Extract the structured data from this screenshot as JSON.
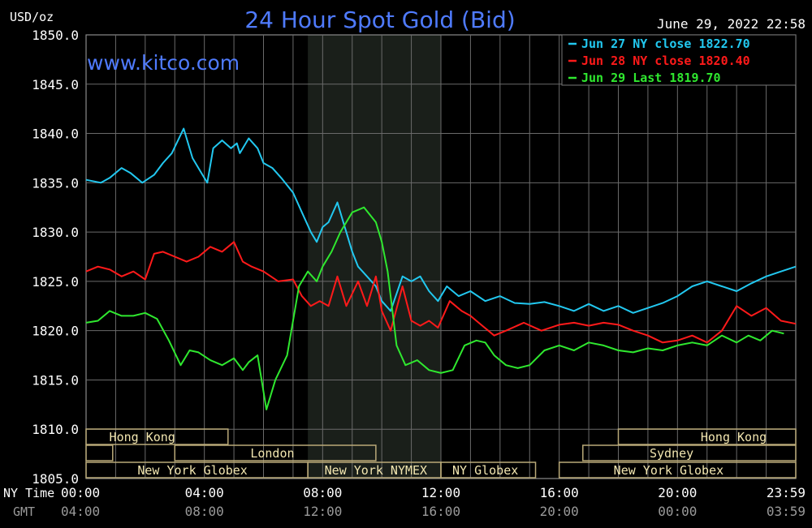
{
  "chart_data": {
    "type": "line",
    "title": "24 Hour Spot Gold (Bid)",
    "ylabel": "USD/oz",
    "watermark": "www.kitco.com",
    "timestamp": "June 29, 2022 22:58",
    "ylim": [
      1805,
      1850
    ],
    "y_ticks": [
      "1850.0",
      "1845.0",
      "1840.0",
      "1835.0",
      "1830.0",
      "1825.0",
      "1820.0",
      "1815.0",
      "1810.0",
      "1805.0"
    ],
    "xlim": [
      0,
      24
    ],
    "x_axis_label": "NY Time",
    "x_axis_label2": "GMT",
    "x_ticks": [
      {
        "x": 0,
        "ny": "00:00",
        "gmt": "04:00"
      },
      {
        "x": 4,
        "ny": "04:00",
        "gmt": "08:00"
      },
      {
        "x": 8,
        "ny": "08:00",
        "gmt": "12:00"
      },
      {
        "x": 12,
        "ny": "12:00",
        "gmt": "16:00"
      },
      {
        "x": 16,
        "ny": "16:00",
        "gmt": "20:00"
      },
      {
        "x": 20,
        "ny": "20:00",
        "gmt": "00:00"
      },
      {
        "x": 24,
        "ny": "23:59",
        "gmt": "03:59"
      }
    ],
    "shaded_region": [
      7.5,
      12
    ],
    "sessions": [
      {
        "label": "Hong Kong",
        "row": 0,
        "start": 0,
        "end": 4.8,
        "label_at": 1.9
      },
      {
        "label": "",
        "row": 1,
        "start": 0,
        "end": 0.9
      },
      {
        "label": "London",
        "row": 1,
        "start": 3,
        "end": 9.8,
        "label_at": 6.3
      },
      {
        "label": "New York Globex",
        "row": 2,
        "start": 0,
        "end": 7.5,
        "label_at": 3.6
      },
      {
        "label": "New York NYMEX",
        "row": 2,
        "start": 7.5,
        "end": 12,
        "label_at": 9.8
      },
      {
        "label": "NY Globex",
        "row": 2,
        "start": 12,
        "end": 15.2,
        "label_at": 13.5
      },
      {
        "label": "Hong Kong",
        "row": 0,
        "start": 18,
        "end": 24,
        "label_at": 21.9
      },
      {
        "label": "Sydney",
        "row": 1,
        "start": 16.8,
        "end": 24,
        "label_at": 19.8
      },
      {
        "label": "New York Globex",
        "row": 2,
        "start": 16,
        "end": 24,
        "label_at": 19.7
      }
    ],
    "series": [
      {
        "name": "Jun 27 NY close 1822.70",
        "color": "#22c8f0",
        "x": [
          0,
          0.5,
          0.8,
          1.2,
          1.5,
          1.9,
          2.3,
          2.6,
          2.9,
          3.3,
          3.6,
          3.9,
          4.1,
          4.3,
          4.6,
          4.9,
          5.1,
          5.2,
          5.5,
          5.8,
          6.0,
          6.3,
          6.6,
          7.0,
          7.3,
          7.6,
          7.8,
          8.0,
          8.2,
          8.5,
          8.7,
          9.0,
          9.2,
          9.5,
          9.8,
          10.0,
          10.3,
          10.7,
          11.0,
          11.3,
          11.6,
          11.9,
          12.2,
          12.6,
          13.0,
          13.5,
          14.0,
          14.5,
          15.0,
          15.5,
          16.0,
          16.5,
          17.0,
          17.5,
          18.0,
          18.5,
          19.0,
          19.5,
          20.0,
          20.5,
          21.0,
          21.5,
          22.0,
          22.5,
          23.0,
          23.5,
          24.0
        ],
        "y": [
          1835.3,
          1835.0,
          1835.5,
          1836.5,
          1836.0,
          1835.0,
          1835.8,
          1837.0,
          1838.0,
          1840.5,
          1837.5,
          1836.0,
          1835.0,
          1838.5,
          1839.3,
          1838.5,
          1839.0,
          1838.0,
          1839.5,
          1838.5,
          1837.0,
          1836.5,
          1835.5,
          1834.0,
          1832.0,
          1830.0,
          1829.0,
          1830.5,
          1831.0,
          1833.0,
          1831.0,
          1828.0,
          1826.5,
          1825.5,
          1824.5,
          1823.0,
          1822.0,
          1825.5,
          1825.0,
          1825.5,
          1824.0,
          1823.0,
          1824.5,
          1823.5,
          1824.0,
          1823.0,
          1823.5,
          1822.8,
          1822.7,
          1822.9,
          1822.5,
          1822.0,
          1822.7,
          1822.0,
          1822.5,
          1821.8,
          1822.3,
          1822.8,
          1823.5,
          1824.5,
          1825.0,
          1824.5,
          1824.0,
          1824.8,
          1825.5,
          1826.0,
          1826.5
        ]
      },
      {
        "name": "Jun 28 NY close 1820.40",
        "color": "#ff1a1a",
        "x": [
          0,
          0.4,
          0.8,
          1.2,
          1.6,
          2.0,
          2.3,
          2.6,
          3.0,
          3.4,
          3.8,
          4.2,
          4.6,
          5.0,
          5.3,
          5.6,
          6.0,
          6.5,
          7.0,
          7.3,
          7.6,
          7.9,
          8.2,
          8.5,
          8.8,
          9.2,
          9.5,
          9.8,
          10.0,
          10.3,
          10.7,
          11.0,
          11.3,
          11.6,
          11.9,
          12.3,
          12.7,
          13.0,
          13.4,
          13.8,
          14.2,
          14.8,
          15.4,
          16.0,
          16.5,
          17.0,
          17.5,
          18.0,
          18.5,
          19.0,
          19.5,
          20.0,
          20.5,
          21.0,
          21.5,
          22.0,
          22.5,
          23.0,
          23.5,
          24.0
        ],
        "y": [
          1826.0,
          1826.5,
          1826.2,
          1825.5,
          1826.0,
          1825.2,
          1827.8,
          1828.0,
          1827.5,
          1827.0,
          1827.5,
          1828.5,
          1828.0,
          1829.0,
          1827.0,
          1826.5,
          1826.0,
          1825.0,
          1825.2,
          1823.5,
          1822.5,
          1823.0,
          1822.5,
          1825.5,
          1822.5,
          1825.0,
          1822.5,
          1825.5,
          1822.0,
          1820.0,
          1824.5,
          1821.0,
          1820.5,
          1821.0,
          1820.3,
          1823.0,
          1822.0,
          1821.5,
          1820.5,
          1819.5,
          1820.0,
          1820.8,
          1820.0,
          1820.6,
          1820.8,
          1820.5,
          1820.8,
          1820.6,
          1820.0,
          1819.5,
          1818.8,
          1819.0,
          1819.5,
          1818.8,
          1820.0,
          1822.5,
          1821.5,
          1822.3,
          1821.0,
          1820.7
        ]
      },
      {
        "name": "Jun 29 Last 1819.70",
        "color": "#2fe82f",
        "x": [
          0,
          0.4,
          0.8,
          1.2,
          1.6,
          2.0,
          2.4,
          2.8,
          3.2,
          3.5,
          3.8,
          4.2,
          4.6,
          5.0,
          5.3,
          5.5,
          5.8,
          6.1,
          6.4,
          6.8,
          7.2,
          7.5,
          7.8,
          8.0,
          8.3,
          8.6,
          9.0,
          9.4,
          9.8,
          10.0,
          10.2,
          10.5,
          10.8,
          11.2,
          11.6,
          12.0,
          12.4,
          12.8,
          13.2,
          13.5,
          13.8,
          14.2,
          14.6,
          15.0,
          15.5,
          16.0,
          16.5,
          17.0,
          17.5,
          18.0,
          18.5,
          19.0,
          19.5,
          20.0,
          20.5,
          21.0,
          21.5,
          22.0,
          22.4,
          22.8,
          23.2,
          23.6
        ],
        "y": [
          1820.8,
          1821.0,
          1822.0,
          1821.5,
          1821.5,
          1821.8,
          1821.2,
          1819.0,
          1816.5,
          1818.0,
          1817.8,
          1817.0,
          1816.5,
          1817.2,
          1816.0,
          1816.8,
          1817.5,
          1812.0,
          1815.0,
          1817.5,
          1824.5,
          1826.0,
          1825.0,
          1826.5,
          1828.0,
          1830.0,
          1832.0,
          1832.5,
          1831.0,
          1829.0,
          1826.0,
          1818.5,
          1816.5,
          1817.0,
          1816.0,
          1815.7,
          1816.0,
          1818.5,
          1819.0,
          1818.8,
          1817.5,
          1816.5,
          1816.2,
          1816.5,
          1818.0,
          1818.5,
          1818.0,
          1818.8,
          1818.5,
          1818.0,
          1817.8,
          1818.2,
          1818.0,
          1818.5,
          1818.8,
          1818.5,
          1819.5,
          1818.8,
          1819.5,
          1819.0,
          1820.0,
          1819.7
        ]
      }
    ]
  }
}
